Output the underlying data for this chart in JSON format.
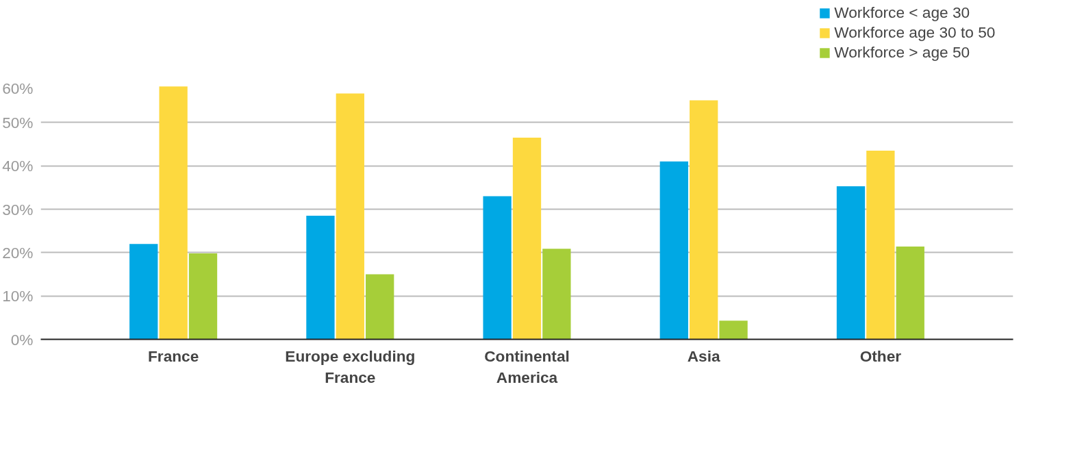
{
  "chart_data": {
    "type": "bar",
    "categories": [
      "France",
      "Europe excluding\nFrance",
      "Continental\nAmerica",
      "Asia",
      "Other"
    ],
    "series": [
      {
        "name": "Workforce < age 30",
        "color": "#00a8e4",
        "values": [
          22,
          28.5,
          33,
          41,
          35.3
        ]
      },
      {
        "name": "Workforce age 30 to 50",
        "color": "#fdd93f",
        "values": [
          58.3,
          56.7,
          46.5,
          55.1,
          43.5
        ]
      },
      {
        "name": "Workforce > age 50",
        "color": "#a6ce39",
        "values": [
          19.8,
          15,
          20.9,
          4.3,
          21.4
        ]
      }
    ],
    "ylim": [
      0,
      60
    ],
    "yticks": [
      {
        "value": 0,
        "label": "0%"
      },
      {
        "value": 10,
        "label": "10%"
      },
      {
        "value": 20,
        "label": "20%"
      },
      {
        "value": 30,
        "label": "30%"
      },
      {
        "value": 40,
        "label": "40%"
      },
      {
        "value": 50,
        "label": "50%"
      },
      {
        "value": 60,
        "label": "60%"
      }
    ],
    "grid": "y",
    "legend": "top right"
  }
}
